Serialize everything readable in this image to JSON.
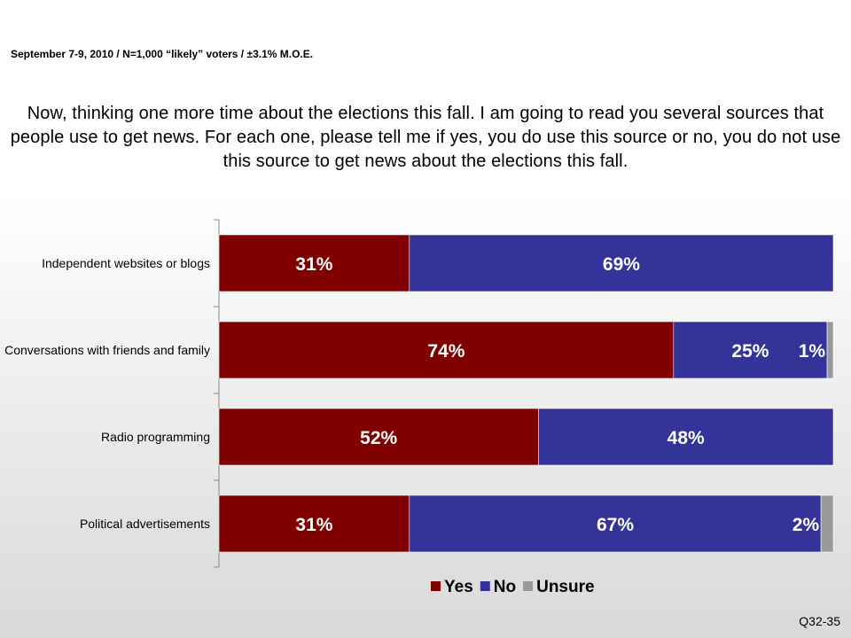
{
  "header": {
    "subtitle": "September 7-9, 2010 / N=1,000 “likely” voters / ±3.1% M.O.E.",
    "question": "Now, thinking one more time about the elections this fall.  I am going to read you several sources that people use to get news.  For each one, please tell me if yes, you do use this source or no, you do not use this source to get news about the elections this fall."
  },
  "footer": {
    "code": "Q32-35"
  },
  "colors": {
    "yes": "#800000",
    "no": "#333399",
    "unsure": "#999999"
  },
  "chart_data": {
    "type": "bar",
    "orientation": "horizontal",
    "stacked": true,
    "unit": "%",
    "categories": [
      "Independent websites or blogs",
      "Conversations with friends and family",
      "Radio programming",
      "Political advertisements"
    ],
    "series": [
      {
        "name": "Yes",
        "values": [
          31,
          74,
          52,
          31
        ],
        "labels": [
          "31%",
          "74%",
          "52%",
          "31%"
        ]
      },
      {
        "name": "No",
        "values": [
          69,
          25,
          48,
          67
        ],
        "labels": [
          "69%",
          "25%",
          "48%",
          "67%"
        ]
      },
      {
        "name": "Unsure",
        "values": [
          0,
          1,
          0,
          2
        ],
        "labels": [
          "",
          "1%",
          "",
          "2%"
        ]
      }
    ],
    "xlim": [
      0,
      100
    ],
    "legend_position": "bottom-right",
    "grid": false
  }
}
